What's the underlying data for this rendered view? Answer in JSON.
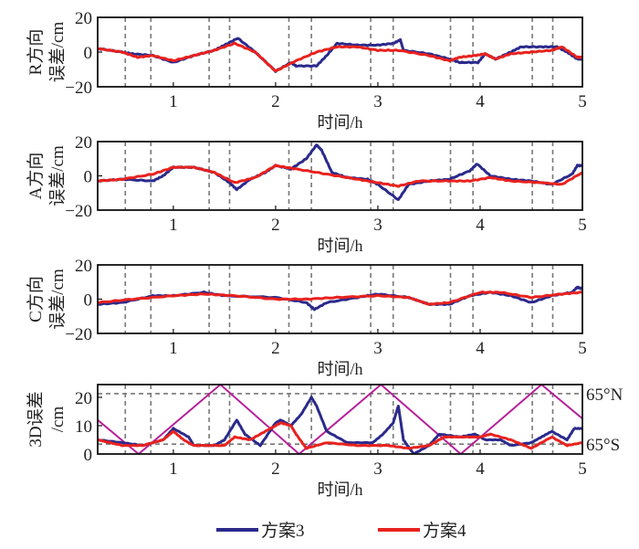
{
  "chart_data": [
    {
      "type": "line",
      "ylabel_lines": [
        "R方向",
        "误差/cm"
      ],
      "xlabel": "时间/h",
      "xlim": [
        0.26,
        5
      ],
      "ylim": [
        -20,
        20
      ],
      "yticks": [
        -20,
        0,
        20
      ],
      "xticks": [
        1,
        2,
        3,
        4,
        5
      ],
      "series": [
        {
          "name": "方案3",
          "color": "#2b2a8c",
          "points": [
            [
              0.26,
              2
            ],
            [
              0.5,
              0
            ],
            [
              0.6,
              -1
            ],
            [
              0.8,
              -2
            ],
            [
              1.0,
              -6
            ],
            [
              1.2,
              -2
            ],
            [
              1.4,
              1
            ],
            [
              1.5,
              4
            ],
            [
              1.63,
              8
            ],
            [
              1.8,
              0
            ],
            [
              2.0,
              -11
            ],
            [
              2.15,
              -6
            ],
            [
              2.2,
              -8
            ],
            [
              2.4,
              -8
            ],
            [
              2.5,
              -2
            ],
            [
              2.6,
              5
            ],
            [
              2.8,
              4
            ],
            [
              3.0,
              4
            ],
            [
              3.15,
              5
            ],
            [
              3.22,
              7
            ],
            [
              3.25,
              1
            ],
            [
              3.5,
              -1
            ],
            [
              3.7,
              -4
            ],
            [
              3.8,
              -6
            ],
            [
              3.98,
              -6
            ],
            [
              4.05,
              -1
            ],
            [
              4.15,
              -4
            ],
            [
              4.3,
              0
            ],
            [
              4.4,
              3
            ],
            [
              4.6,
              3
            ],
            [
              4.75,
              3
            ],
            [
              4.85,
              0
            ],
            [
              4.95,
              -4
            ],
            [
              5,
              -4
            ]
          ]
        },
        {
          "name": "方案4",
          "color": "#e8221e",
          "points": [
            [
              0.26,
              2
            ],
            [
              0.5,
              0
            ],
            [
              0.65,
              -3
            ],
            [
              0.8,
              -2
            ],
            [
              1.0,
              -5
            ],
            [
              1.2,
              -2
            ],
            [
              1.4,
              1
            ],
            [
              1.6,
              5
            ],
            [
              1.8,
              0
            ],
            [
              2.0,
              -11
            ],
            [
              2.2,
              -5
            ],
            [
              2.4,
              0
            ],
            [
              2.6,
              3
            ],
            [
              2.8,
              3
            ],
            [
              3.0,
              1
            ],
            [
              3.2,
              1
            ],
            [
              3.5,
              -2
            ],
            [
              3.7,
              -5
            ],
            [
              3.8,
              -3
            ],
            [
              3.95,
              -2
            ],
            [
              4.05,
              -1
            ],
            [
              4.15,
              -4
            ],
            [
              4.3,
              -1
            ],
            [
              4.5,
              0
            ],
            [
              4.7,
              1
            ],
            [
              4.8,
              3
            ],
            [
              4.95,
              -3
            ],
            [
              5,
              -3
            ]
          ]
        }
      ]
    },
    {
      "type": "line",
      "ylabel_lines": [
        "A方向",
        "误差/cm"
      ],
      "xlabel": "时间/h",
      "xlim": [
        0.26,
        5
      ],
      "ylim": [
        -20,
        20
      ],
      "yticks": [
        -20,
        0,
        20
      ],
      "xticks": [
        1,
        2,
        3,
        4,
        5
      ],
      "series": [
        {
          "name": "方案3",
          "color": "#2b2a8c",
          "points": [
            [
              0.26,
              -3
            ],
            [
              0.5,
              -2
            ],
            [
              0.8,
              -3
            ],
            [
              0.9,
              0
            ],
            [
              1.0,
              5
            ],
            [
              1.2,
              5
            ],
            [
              1.4,
              2
            ],
            [
              1.55,
              -4
            ],
            [
              1.62,
              -8
            ],
            [
              1.75,
              -2
            ],
            [
              1.9,
              2
            ],
            [
              2.0,
              6
            ],
            [
              2.15,
              4
            ],
            [
              2.3,
              10
            ],
            [
              2.4,
              18
            ],
            [
              2.45,
              15
            ],
            [
              2.55,
              2
            ],
            [
              2.7,
              -1
            ],
            [
              2.9,
              -2
            ],
            [
              3.0,
              -5
            ],
            [
              3.2,
              -14
            ],
            [
              3.3,
              -5
            ],
            [
              3.5,
              -3
            ],
            [
              3.7,
              -2
            ],
            [
              3.9,
              3
            ],
            [
              3.97,
              7
            ],
            [
              4.1,
              0
            ],
            [
              4.3,
              -2
            ],
            [
              4.5,
              -3
            ],
            [
              4.7,
              -5
            ],
            [
              4.9,
              1
            ],
            [
              4.95,
              6
            ],
            [
              5,
              6
            ]
          ]
        },
        {
          "name": "方案4",
          "color": "#e8221e",
          "points": [
            [
              0.26,
              -3
            ],
            [
              0.5,
              -2
            ],
            [
              0.8,
              1
            ],
            [
              1.0,
              5
            ],
            [
              1.2,
              5
            ],
            [
              1.4,
              2
            ],
            [
              1.6,
              -4
            ],
            [
              1.8,
              -1
            ],
            [
              2.0,
              6
            ],
            [
              2.2,
              4
            ],
            [
              2.5,
              1
            ],
            [
              2.8,
              -2
            ],
            [
              3.0,
              -4
            ],
            [
              3.2,
              -6
            ],
            [
              3.4,
              -3
            ],
            [
              3.7,
              -3
            ],
            [
              3.9,
              -3
            ],
            [
              4.1,
              -1
            ],
            [
              4.3,
              -3
            ],
            [
              4.6,
              -4
            ],
            [
              4.8,
              -5
            ],
            [
              5,
              2
            ]
          ]
        }
      ]
    },
    {
      "type": "line",
      "ylabel_lines": [
        "C方向",
        "误差/cm"
      ],
      "xlabel": "时间/h",
      "xlim": [
        0.26,
        5
      ],
      "ylim": [
        -20,
        20
      ],
      "yticks": [
        -20,
        0,
        20
      ],
      "xticks": [
        1,
        2,
        3,
        4,
        5
      ],
      "series": [
        {
          "name": "方案3",
          "color": "#2b2a8c",
          "points": [
            [
              0.26,
              -3
            ],
            [
              0.5,
              -2
            ],
            [
              0.8,
              2
            ],
            [
              1.0,
              2
            ],
            [
              1.3,
              4
            ],
            [
              1.5,
              2
            ],
            [
              2.0,
              1
            ],
            [
              2.3,
              -2
            ],
            [
              2.38,
              -6
            ],
            [
              2.5,
              -2
            ],
            [
              2.8,
              1
            ],
            [
              3.0,
              3
            ],
            [
              3.3,
              1
            ],
            [
              3.5,
              -3
            ],
            [
              3.7,
              -3
            ],
            [
              3.9,
              2
            ],
            [
              4.1,
              4
            ],
            [
              4.3,
              2
            ],
            [
              4.5,
              -2
            ],
            [
              4.7,
              2
            ],
            [
              4.9,
              4
            ],
            [
              4.95,
              7
            ],
            [
              5,
              6
            ]
          ]
        },
        {
          "name": "方案4",
          "color": "#e8221e",
          "points": [
            [
              0.26,
              -2
            ],
            [
              0.6,
              0
            ],
            [
              1.0,
              2
            ],
            [
              1.3,
              3
            ],
            [
              1.6,
              2
            ],
            [
              2.0,
              0
            ],
            [
              2.3,
              0
            ],
            [
              2.6,
              1
            ],
            [
              3.0,
              2
            ],
            [
              3.3,
              1
            ],
            [
              3.5,
              -3
            ],
            [
              3.7,
              -2
            ],
            [
              4.0,
              4
            ],
            [
              4.2,
              4
            ],
            [
              4.5,
              1
            ],
            [
              4.8,
              3
            ],
            [
              5,
              4
            ]
          ]
        }
      ]
    },
    {
      "type": "line",
      "ylabel_lines": [
        "3D误差",
        "/cm"
      ],
      "xlabel": "时间/h",
      "xlim": [
        0.26,
        5
      ],
      "ylim": [
        0,
        24.5
      ],
      "yticks": [
        0,
        10,
        20
      ],
      "xticks": [
        1,
        2,
        3,
        4,
        5
      ],
      "hlines": [
        {
          "y": 21.3,
          "label": "65°N"
        },
        {
          "y": 3.5,
          "label": "65°S"
        }
      ],
      "latitude_curve": {
        "color": "#b5219a",
        "points": [
          [
            0.26,
            12
          ],
          [
            0.66,
            0
          ],
          [
            1.46,
            24.5
          ],
          [
            2.23,
            0
          ],
          [
            3.03,
            24.5
          ],
          [
            3.81,
            0
          ],
          [
            4.6,
            24.5
          ],
          [
            5,
            12.5
          ]
        ]
      },
      "series": [
        {
          "name": "方案3",
          "color": "#2b2a8c",
          "points": [
            [
              0.26,
              5
            ],
            [
              0.5,
              4
            ],
            [
              0.7,
              3
            ],
            [
              0.9,
              5
            ],
            [
              1.0,
              9
            ],
            [
              1.15,
              6
            ],
            [
              1.2,
              3
            ],
            [
              1.4,
              3
            ],
            [
              1.5,
              5
            ],
            [
              1.62,
              12
            ],
            [
              1.7,
              7
            ],
            [
              1.85,
              3
            ],
            [
              2.0,
              11
            ],
            [
              2.05,
              12
            ],
            [
              2.15,
              10
            ],
            [
              2.25,
              14
            ],
            [
              2.35,
              20
            ],
            [
              2.4,
              17
            ],
            [
              2.5,
              8
            ],
            [
              2.7,
              4
            ],
            [
              2.95,
              4
            ],
            [
              3.05,
              7
            ],
            [
              3.15,
              11
            ],
            [
              3.2,
              17
            ],
            [
              3.25,
              5
            ],
            [
              3.35,
              0
            ],
            [
              3.5,
              3
            ],
            [
              3.6,
              7
            ],
            [
              3.8,
              6
            ],
            [
              3.95,
              7
            ],
            [
              4.05,
              5
            ],
            [
              4.2,
              5
            ],
            [
              4.3,
              3
            ],
            [
              4.5,
              4
            ],
            [
              4.6,
              6
            ],
            [
              4.7,
              8
            ],
            [
              4.85,
              5
            ],
            [
              4.92,
              9
            ],
            [
              5,
              9
            ]
          ]
        },
        {
          "name": "方案4",
          "color": "#e8221e",
          "points": [
            [
              0.26,
              5
            ],
            [
              0.5,
              3
            ],
            [
              0.7,
              3
            ],
            [
              0.9,
              5
            ],
            [
              1.0,
              8
            ],
            [
              1.1,
              5
            ],
            [
              1.2,
              3
            ],
            [
              1.5,
              3
            ],
            [
              1.6,
              6
            ],
            [
              1.75,
              5
            ],
            [
              1.9,
              8
            ],
            [
              2.05,
              11
            ],
            [
              2.15,
              10
            ],
            [
              2.2,
              7
            ],
            [
              2.3,
              2
            ],
            [
              2.5,
              4
            ],
            [
              2.8,
              3
            ],
            [
              3.1,
              3
            ],
            [
              3.3,
              2
            ],
            [
              3.5,
              3
            ],
            [
              3.65,
              6
            ],
            [
              3.8,
              6
            ],
            [
              4.0,
              6
            ],
            [
              4.1,
              7
            ],
            [
              4.3,
              5
            ],
            [
              4.5,
              2
            ],
            [
              4.7,
              6
            ],
            [
              4.85,
              3
            ],
            [
              5,
              4
            ]
          ]
        }
      ]
    }
  ],
  "vertical_dashed_x": [
    0.53,
    0.78,
    1.35,
    1.55,
    2.13,
    2.35,
    2.93,
    3.15,
    3.71,
    3.93,
    4.51,
    4.71
  ],
  "legend": [
    {
      "label": "方案3",
      "color": "#2b2a8c"
    },
    {
      "label": "方案4",
      "color": "#e8221e"
    }
  ]
}
